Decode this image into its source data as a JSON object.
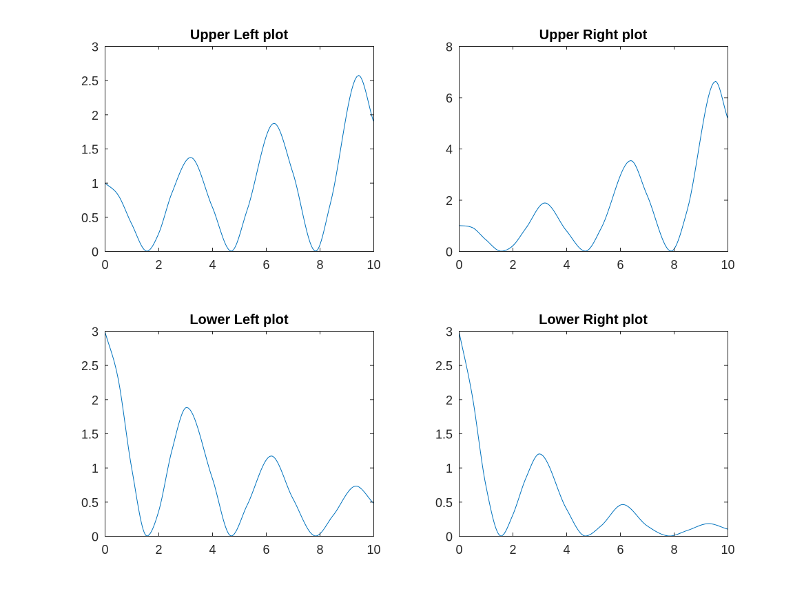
{
  "chart_data": [
    {
      "type": "line",
      "title": "Upper Left plot",
      "xlabel": "",
      "ylabel": "",
      "xlim": [
        0,
        10
      ],
      "ylim": [
        0,
        3
      ],
      "xticks": [
        "0",
        "2",
        "4",
        "6",
        "8",
        "10"
      ],
      "yticks": [
        "0",
        "0.5",
        "1",
        "1.5",
        "2",
        "2.5",
        "3"
      ],
      "grid": false,
      "color": "#0072bd",
      "x": [
        0,
        0.5,
        1,
        1.57,
        2,
        2.5,
        3.2,
        4,
        4.71,
        5.3,
        6.3,
        7,
        7.85,
        8.4,
        9.45,
        10
      ],
      "values": [
        1,
        0.82,
        0.4,
        0,
        0.25,
        0.85,
        1.37,
        0.65,
        0,
        0.6,
        1.87,
        1.15,
        0,
        0.7,
        2.57,
        1.9
      ]
    },
    {
      "type": "line",
      "title": "Upper Right plot",
      "xlabel": "",
      "ylabel": "",
      "xlim": [
        0,
        10
      ],
      "ylim": [
        0,
        8
      ],
      "xticks": [
        "0",
        "2",
        "4",
        "6",
        "8",
        "10"
      ],
      "yticks": [
        "0",
        "2",
        "4",
        "6",
        "8"
      ],
      "grid": false,
      "color": "#0072bd",
      "x": [
        0,
        0.5,
        1,
        1.57,
        2,
        2.5,
        3.2,
        4,
        4.71,
        5.3,
        6.4,
        7,
        7.9,
        8.5,
        9.55,
        10
      ],
      "values": [
        1,
        0.92,
        0.45,
        0,
        0.2,
        0.9,
        1.88,
        0.8,
        0,
        0.9,
        3.53,
        2.2,
        0,
        1.6,
        6.62,
        5.2
      ]
    },
    {
      "type": "line",
      "title": "Lower Left plot",
      "xlabel": "",
      "ylabel": "",
      "xlim": [
        0,
        10
      ],
      "ylim": [
        0,
        3
      ],
      "xticks": [
        "0",
        "2",
        "4",
        "6",
        "8",
        "10"
      ],
      "yticks": [
        "0",
        "0.5",
        "1",
        "1.5",
        "2",
        "2.5",
        "3"
      ],
      "grid": false,
      "color": "#0072bd",
      "x": [
        0,
        0.5,
        1,
        1.57,
        2,
        2.5,
        3.05,
        4,
        4.71,
        5.3,
        6.2,
        7,
        7.85,
        8.5,
        9.35,
        10
      ],
      "values": [
        3,
        2.3,
        1.0,
        0,
        0.35,
        1.25,
        1.88,
        0.85,
        0,
        0.45,
        1.17,
        0.55,
        0,
        0.3,
        0.73,
        0.48
      ]
    },
    {
      "type": "line",
      "title": "Lower Right plot",
      "xlabel": "",
      "ylabel": "",
      "xlim": [
        0,
        10
      ],
      "ylim": [
        0,
        3
      ],
      "xticks": [
        "0",
        "2",
        "4",
        "6",
        "8",
        "10"
      ],
      "yticks": [
        "0",
        "0.5",
        "1",
        "1.5",
        "2",
        "2.5",
        "3"
      ],
      "grid": false,
      "color": "#0072bd",
      "x": [
        0,
        0.5,
        1,
        1.57,
        2,
        2.5,
        3.0,
        4,
        4.71,
        5.3,
        6.1,
        7,
        7.85,
        8.5,
        9.3,
        10
      ],
      "values": [
        3,
        2.05,
        0.75,
        0,
        0.3,
        0.85,
        1.2,
        0.4,
        0,
        0.15,
        0.46,
        0.15,
        0,
        0.08,
        0.18,
        0.1
      ]
    }
  ]
}
